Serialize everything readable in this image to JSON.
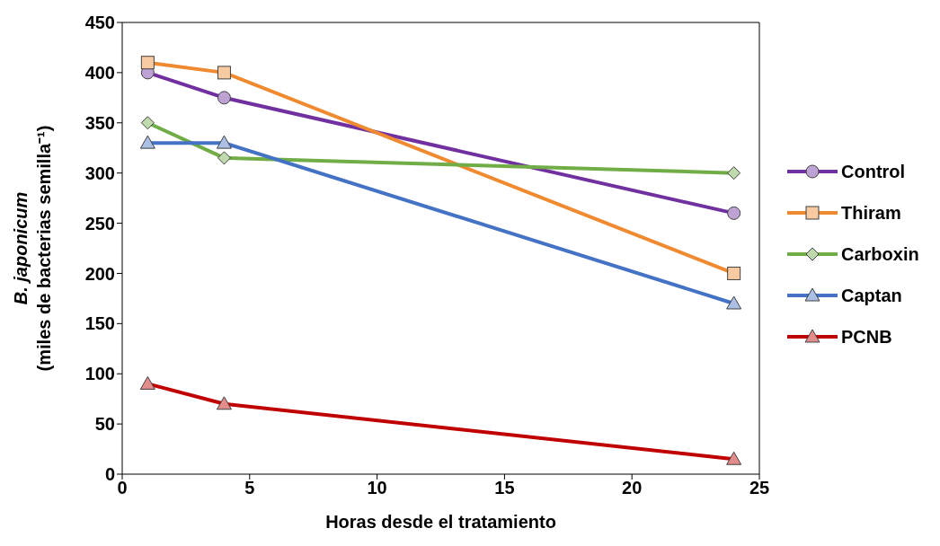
{
  "chart_data": {
    "type": "line",
    "xlabel": "Horas desde el tratamiento",
    "ylabel": "B. japonicum\n(miles de bacterias semilla⁻¹)",
    "x": [
      1,
      4,
      24
    ],
    "xlim": [
      0,
      25
    ],
    "xticks": [
      0,
      5,
      10,
      15,
      20,
      25
    ],
    "ylim": [
      0,
      450
    ],
    "yticks": [
      0,
      50,
      100,
      150,
      200,
      250,
      300,
      350,
      400,
      450
    ],
    "grid": false,
    "legend": "right",
    "series": [
      {
        "name": "Control",
        "color": "#7030a0",
        "marker": "circle",
        "values": [
          400,
          375,
          260
        ]
      },
      {
        "name": "Thiram",
        "color": "#f08a30",
        "marker": "square",
        "values": [
          410,
          400,
          200
        ]
      },
      {
        "name": "Carboxin",
        "color": "#70ad47",
        "marker": "diamond",
        "values": [
          350,
          315,
          300
        ]
      },
      {
        "name": "Captan",
        "color": "#4472c4",
        "marker": "triangle",
        "values": [
          330,
          330,
          170
        ]
      },
      {
        "name": "PCNB",
        "color": "#c00000",
        "marker": "triangle",
        "values": [
          90,
          70,
          15
        ]
      }
    ]
  }
}
